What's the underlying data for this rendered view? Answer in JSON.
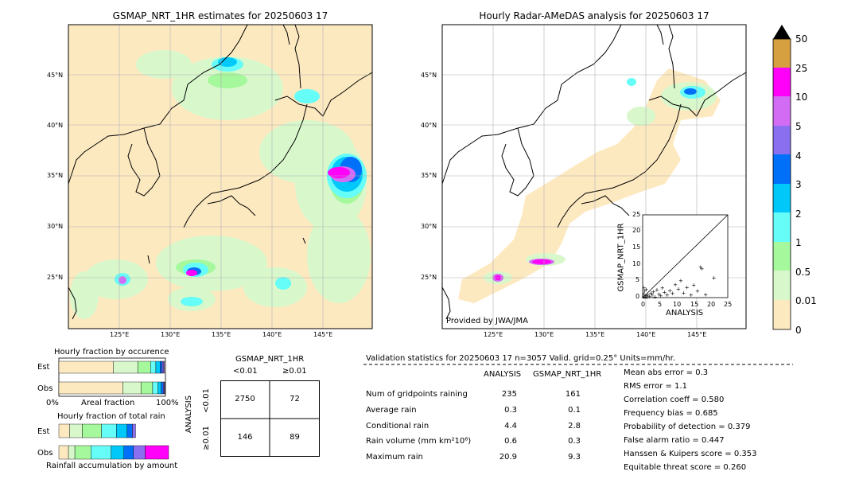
{
  "maps": {
    "left_title": "GSMAP_NRT_1HR estimates for 20250603 17",
    "right_title": "Hourly Radar-AMeDAS analysis for 20250603 17",
    "lat_labels": [
      "45°N",
      "40°N",
      "35°N",
      "30°N",
      "25°N"
    ],
    "lon_labels": [
      "125°E",
      "130°E",
      "135°E",
      "140°E",
      "145°E"
    ],
    "credit": "Provided by JWA/JMA"
  },
  "colorbar": {
    "labels": [
      "0",
      "0.01",
      "0.5",
      "1",
      "2",
      "3",
      "4",
      "5",
      "10",
      "25",
      "50"
    ],
    "colors": [
      "#fde9c0",
      "#d8f8cc",
      "#a6f89c",
      "#66fcf8",
      "#00c8f8",
      "#0070f8",
      "#8a70f0",
      "#d26cf4",
      "#ff00f8",
      "#d6a040"
    ]
  },
  "scatter": {
    "xlabel": "ANALYSIS",
    "ylabel": "GSMAP_NRT_1HR",
    "ticks": [
      "0",
      "5",
      "10",
      "15",
      "20",
      "25"
    ]
  },
  "fraction_occurrence": {
    "title": "Hourly fraction by occurence",
    "rows": [
      "Est",
      "Obs"
    ],
    "xmin": "0%",
    "xmid": "Areal fraction",
    "xmax": "100%"
  },
  "fraction_total": {
    "title": "Hourly fraction of total rain",
    "rows": [
      "Est",
      "Obs"
    ],
    "xlabel": "Rainfall accumulation by amount"
  },
  "contingency": {
    "title": "GSMAP_NRT_1HR",
    "col_headers": [
      "<0.01",
      "≥0.01"
    ],
    "row_label": "ANALYSIS",
    "row_headers": [
      "<0.01",
      "≥0.01"
    ],
    "cells": [
      [
        "2750",
        "72"
      ],
      [
        "146",
        "89"
      ]
    ]
  },
  "validation": {
    "header": "Validation statistics for 20250603 17  n=3057 Valid. grid=0.25°  Units=mm/hr.",
    "col_analysis": "ANALYSIS",
    "col_gsmap": "GSMAP_NRT_1HR",
    "rows": [
      {
        "label": "Num of gridpoints raining",
        "analysis": "235",
        "gsmap": "161"
      },
      {
        "label": "Average rain",
        "analysis": "0.3",
        "gsmap": "0.1"
      },
      {
        "label": "Conditional rain",
        "analysis": "4.4",
        "gsmap": "2.8"
      },
      {
        "label": "Rain volume (mm km²10⁶)",
        "analysis": "0.6",
        "gsmap": "0.3"
      },
      {
        "label": "Maximum rain",
        "analysis": "20.9",
        "gsmap": "9.3"
      }
    ],
    "scores": [
      "Mean abs error =    0.3",
      "RMS error =    1.1",
      "Correlation coeff =  0.580",
      "Frequency bias =  0.685",
      "Probability of detection =  0.379",
      "False alarm ratio =  0.447",
      "Hanssen & Kuipers score =  0.353",
      "Equitable threat score =  0.260"
    ]
  },
  "chart_data": [
    {
      "type": "scatter",
      "title": "",
      "xlabel": "ANALYSIS",
      "ylabel": "GSMAP_NRT_1HR",
      "xlim": [
        0,
        25
      ],
      "ylim": [
        0,
        25
      ],
      "points": [
        {
          "x": 0.2,
          "y": 0.1
        },
        {
          "x": 0.5,
          "y": 0.3
        },
        {
          "x": 0.8,
          "y": 0.2
        },
        {
          "x": 1.0,
          "y": 0.6
        },
        {
          "x": 1.3,
          "y": 0.1
        },
        {
          "x": 1.6,
          "y": 0.9
        },
        {
          "x": 2.0,
          "y": 0.4
        },
        {
          "x": 2.4,
          "y": 1.5
        },
        {
          "x": 0.3,
          "y": 1.2
        },
        {
          "x": 0.6,
          "y": 2.0
        },
        {
          "x": 0.4,
          "y": 3.0
        },
        {
          "x": 1.1,
          "y": 2.5
        },
        {
          "x": 2.8,
          "y": 0.8
        },
        {
          "x": 3.2,
          "y": 1.8
        },
        {
          "x": 3.6,
          "y": 0.3
        },
        {
          "x": 4.2,
          "y": 2.4
        },
        {
          "x": 4.8,
          "y": 1.1
        },
        {
          "x": 5.3,
          "y": 0.6
        },
        {
          "x": 5.8,
          "y": 3.0
        },
        {
          "x": 6.4,
          "y": 1.7
        },
        {
          "x": 7.2,
          "y": 0.9
        },
        {
          "x": 8.0,
          "y": 2.2
        },
        {
          "x": 8.8,
          "y": 1.3
        },
        {
          "x": 9.6,
          "y": 4.0
        },
        {
          "x": 10.5,
          "y": 2.6
        },
        {
          "x": 11.2,
          "y": 5.2
        },
        {
          "x": 12.0,
          "y": 1.5
        },
        {
          "x": 13.0,
          "y": 3.1
        },
        {
          "x": 14.2,
          "y": 0.8
        },
        {
          "x": 15.0,
          "y": 3.9
        },
        {
          "x": 16.1,
          "y": 2.0
        },
        {
          "x": 17.0,
          "y": 9.3
        },
        {
          "x": 17.4,
          "y": 8.8
        },
        {
          "x": 18.5,
          "y": 1.0
        },
        {
          "x": 20.9,
          "y": 6.0
        }
      ]
    },
    {
      "type": "bar",
      "title": "Hourly fraction by occurence",
      "categories": [
        "Est",
        "Obs"
      ],
      "series": [
        {
          "values": [
            0.51,
            0.6
          ]
        },
        {
          "values": [
            0.23,
            0.17
          ]
        },
        {
          "values": [
            0.12,
            0.11
          ]
        },
        {
          "values": [
            0.05,
            0.05
          ]
        },
        {
          "values": [
            0.04,
            0.03
          ]
        },
        {
          "values": [
            0.02,
            0.02
          ]
        },
        {
          "values": [
            0.015,
            0.01
          ]
        },
        {
          "values": [
            0.005,
            0.005
          ]
        }
      ]
    },
    {
      "type": "bar",
      "title": "Hourly fraction of total rain",
      "categories": [
        "Est",
        "Obs"
      ],
      "series": [
        {
          "values": [
            0.1,
            0.09
          ]
        },
        {
          "values": [
            0.12,
            0.06
          ]
        },
        {
          "values": [
            0.18,
            0.15
          ]
        },
        {
          "values": [
            0.14,
            0.19
          ]
        },
        {
          "values": [
            0.1,
            0.12
          ]
        },
        {
          "values": [
            0.05,
            0.09
          ]
        },
        {
          "values": [
            0.03,
            0.11
          ]
        },
        {
          "values": [
            0.0,
            0.22
          ]
        },
        {
          "values": [
            0.0,
            0.0
          ]
        }
      ]
    }
  ]
}
